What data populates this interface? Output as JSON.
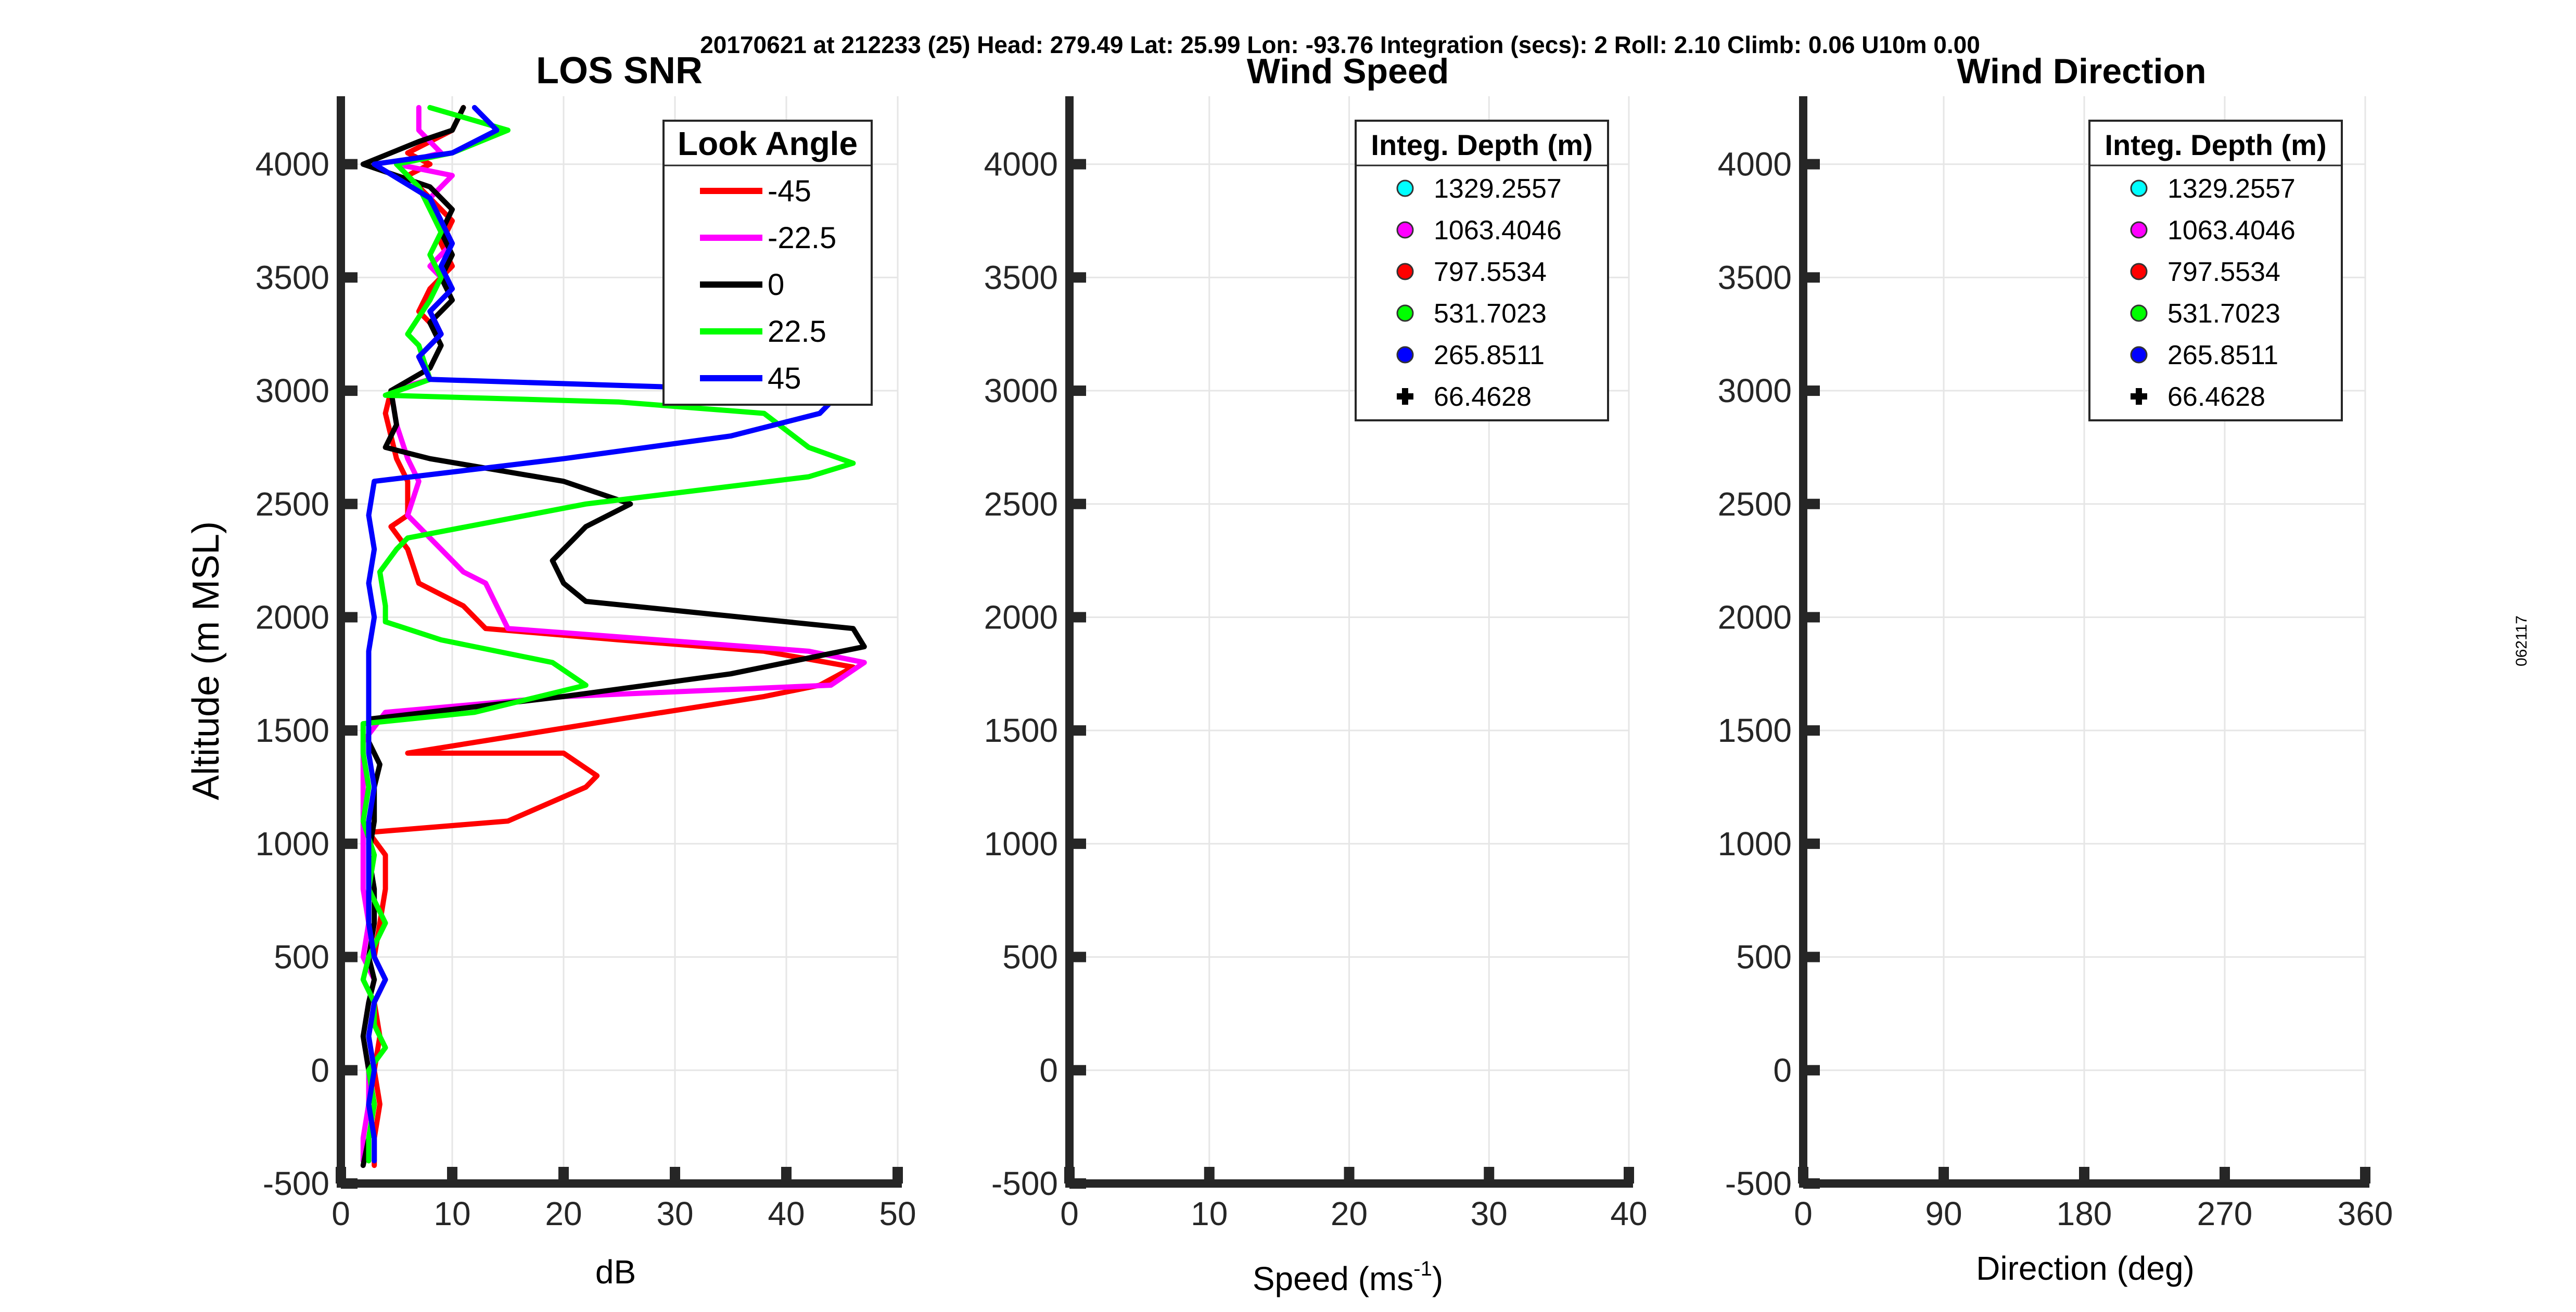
{
  "figure": {
    "header": "20170621 at 212233 (25)  Head: 279.49  Lat: 25.99  Lon: -93.76  Integration (secs): 2  Roll: 2.10  Climb: 0.06  U10m 0.00",
    "side_label": "062117",
    "colors": {
      "red": "#ff0000",
      "magenta": "#ff00ff",
      "black": "#000000",
      "green": "#00ff00",
      "blue": "#0000ff",
      "cyan": "#00ffff",
      "grid": "#e6e6e6",
      "axis": "#262626"
    }
  },
  "chart_data": [
    {
      "type": "line",
      "title": "LOS SNR",
      "xlabel": "dB",
      "ylabel": "Altitude (m MSL)",
      "xlim": [
        0,
        50
      ],
      "ylim": [
        -500,
        4300
      ],
      "xticks": [
        0,
        10,
        20,
        30,
        40,
        50
      ],
      "yticks": [
        -500,
        0,
        500,
        1000,
        1500,
        2000,
        2500,
        3000,
        3500,
        4000
      ],
      "grid": true,
      "legend": {
        "title": "Look Angle",
        "placement": "top-right",
        "entries": [
          "-45",
          "-22.5",
          "0",
          "22.5",
          "45"
        ]
      },
      "series": [
        {
          "name": "-45",
          "color": "#ff0000",
          "points": [
            [
              3,
              -420
            ],
            [
              3,
              -300
            ],
            [
              3.5,
              -150
            ],
            [
              3,
              0
            ],
            [
              3.5,
              150
            ],
            [
              3,
              300
            ],
            [
              4,
              400
            ],
            [
              3,
              500
            ],
            [
              3.5,
              650
            ],
            [
              4,
              800
            ],
            [
              4,
              950
            ],
            [
              2.5,
              1050
            ],
            [
              15,
              1100
            ],
            [
              22,
              1250
            ],
            [
              23,
              1300
            ],
            [
              20,
              1400
            ],
            [
              6,
              1400
            ],
            [
              25,
              1550
            ],
            [
              38,
              1650
            ],
            [
              43,
              1700
            ],
            [
              46,
              1780
            ],
            [
              38,
              1850
            ],
            [
              25,
              1900
            ],
            [
              13,
              1950
            ],
            [
              11,
              2050
            ],
            [
              7,
              2150
            ],
            [
              6,
              2300
            ],
            [
              4.5,
              2400
            ],
            [
              6,
              2450
            ],
            [
              6,
              2600
            ],
            [
              5,
              2700
            ],
            [
              4,
              2900
            ],
            [
              4.5,
              3000
            ],
            [
              8,
              3050
            ],
            [
              7,
              3150
            ],
            [
              9,
              3250
            ],
            [
              7,
              3350
            ],
            [
              8,
              3450
            ],
            [
              10,
              3550
            ],
            [
              9,
              3650
            ],
            [
              10,
              3750
            ],
            [
              8,
              3850
            ],
            [
              6,
              3950
            ],
            [
              8,
              4000
            ],
            [
              6,
              4050
            ],
            [
              10,
              4150
            ],
            [
              11,
              4250
            ]
          ]
        },
        {
          "name": "-22.5",
          "color": "#ff00ff",
          "points": [
            [
              2,
              -400
            ],
            [
              2,
              -300
            ],
            [
              2.5,
              -150
            ],
            [
              2.5,
              0
            ],
            [
              2,
              150
            ],
            [
              2.5,
              300
            ],
            [
              3,
              400
            ],
            [
              2,
              500
            ],
            [
              2.5,
              650
            ],
            [
              2,
              800
            ],
            [
              2,
              950
            ],
            [
              2,
              1050
            ],
            [
              2,
              1150
            ],
            [
              2,
              1300
            ],
            [
              2,
              1450
            ],
            [
              4,
              1580
            ],
            [
              20,
              1650
            ],
            [
              44,
              1700
            ],
            [
              47,
              1800
            ],
            [
              42,
              1850
            ],
            [
              15,
              1950
            ],
            [
              14,
              2050
            ],
            [
              13,
              2150
            ],
            [
              11,
              2200
            ],
            [
              9,
              2300
            ],
            [
              6,
              2450
            ],
            [
              7,
              2600
            ],
            [
              6,
              2700
            ],
            [
              5,
              2850
            ],
            [
              4.5,
              3000
            ],
            [
              8,
              3050
            ],
            [
              7,
              3150
            ],
            [
              9,
              3250
            ],
            [
              8,
              3350
            ],
            [
              10,
              3450
            ],
            [
              8,
              3550
            ],
            [
              10,
              3650
            ],
            [
              9,
              3750
            ],
            [
              8,
              3850
            ],
            [
              10,
              3950
            ],
            [
              5,
              4000
            ],
            [
              9,
              4050
            ],
            [
              7,
              4150
            ],
            [
              7,
              4250
            ]
          ]
        },
        {
          "name": "0",
          "color": "#000000",
          "points": [
            [
              2,
              -420
            ],
            [
              2.5,
              -300
            ],
            [
              3,
              -150
            ],
            [
              2.5,
              0
            ],
            [
              2,
              150
            ],
            [
              2.5,
              300
            ],
            [
              3,
              400
            ],
            [
              2.5,
              500
            ],
            [
              3,
              650
            ],
            [
              3,
              800
            ],
            [
              2.5,
              950
            ],
            [
              3,
              1100
            ],
            [
              3,
              1250
            ],
            [
              3.5,
              1350
            ],
            [
              2.5,
              1450
            ],
            [
              2.5,
              1550
            ],
            [
              20,
              1650
            ],
            [
              35,
              1750
            ],
            [
              47,
              1870
            ],
            [
              46,
              1950
            ],
            [
              22,
              2070
            ],
            [
              20,
              2150
            ],
            [
              19,
              2250
            ],
            [
              21,
              2350
            ],
            [
              22,
              2400
            ],
            [
              26,
              2500
            ],
            [
              20,
              2600
            ],
            [
              8,
              2700
            ],
            [
              4,
              2750
            ],
            [
              5,
              2850
            ],
            [
              4.5,
              3000
            ],
            [
              8,
              3100
            ],
            [
              9,
              3200
            ],
            [
              8,
              3300
            ],
            [
              10,
              3400
            ],
            [
              9,
              3500
            ],
            [
              10,
              3600
            ],
            [
              9,
              3700
            ],
            [
              10,
              3800
            ],
            [
              8,
              3900
            ],
            [
              2,
              4000
            ],
            [
              7,
              4100
            ],
            [
              10,
              4150
            ],
            [
              11,
              4250
            ]
          ]
        },
        {
          "name": "22.5",
          "color": "#00ff00",
          "points": [
            [
              2.5,
              -400
            ],
            [
              2.5,
              -300
            ],
            [
              3,
              -150
            ],
            [
              2.5,
              0
            ],
            [
              4,
              100
            ],
            [
              3,
              200
            ],
            [
              3,
              300
            ],
            [
              2,
              400
            ],
            [
              2.5,
              500
            ],
            [
              4,
              650
            ],
            [
              2.5,
              800
            ],
            [
              3,
              950
            ],
            [
              2,
              1100
            ],
            [
              2.5,
              1250
            ],
            [
              2,
              1400
            ],
            [
              2,
              1530
            ],
            [
              12,
              1580
            ],
            [
              22,
              1700
            ],
            [
              19,
              1800
            ],
            [
              9,
              1900
            ],
            [
              4,
              1980
            ],
            [
              4,
              2050
            ],
            [
              3.5,
              2200
            ],
            [
              5,
              2300
            ],
            [
              6,
              2350
            ],
            [
              22,
              2500
            ],
            [
              42,
              2620
            ],
            [
              46,
              2680
            ],
            [
              42,
              2750
            ],
            [
              38,
              2900
            ],
            [
              25,
              2950
            ],
            [
              4,
              2980
            ],
            [
              8,
              3050
            ],
            [
              7,
              3200
            ],
            [
              6,
              3250
            ],
            [
              8,
              3400
            ],
            [
              9,
              3500
            ],
            [
              8,
              3600
            ],
            [
              9,
              3700
            ],
            [
              8,
              3800
            ],
            [
              7,
              3900
            ],
            [
              5,
              4000
            ],
            [
              10,
              4050
            ],
            [
              15,
              4150
            ],
            [
              8,
              4250
            ]
          ]
        },
        {
          "name": "45",
          "color": "#0000ff",
          "points": [
            [
              3,
              -400
            ],
            [
              3,
              -300
            ],
            [
              2.5,
              -150
            ],
            [
              3,
              0
            ],
            [
              2.5,
              150
            ],
            [
              3,
              300
            ],
            [
              4,
              400
            ],
            [
              3,
              500
            ],
            [
              2.5,
              650
            ],
            [
              2.5,
              800
            ],
            [
              2.5,
              950
            ],
            [
              2.5,
              1100
            ],
            [
              3,
              1250
            ],
            [
              2.5,
              1400
            ],
            [
              2.5,
              1550
            ],
            [
              2.5,
              1700
            ],
            [
              2.5,
              1850
            ],
            [
              3,
              2000
            ],
            [
              2.5,
              2150
            ],
            [
              3,
              2300
            ],
            [
              2.5,
              2450
            ],
            [
              3,
              2600
            ],
            [
              20,
              2700
            ],
            [
              35,
              2800
            ],
            [
              43,
              2900
            ],
            [
              44,
              2950
            ],
            [
              40,
              3000
            ],
            [
              8,
              3050
            ],
            [
              7,
              3150
            ],
            [
              9,
              3250
            ],
            [
              8,
              3350
            ],
            [
              10,
              3450
            ],
            [
              9,
              3550
            ],
            [
              10,
              3650
            ],
            [
              9,
              3750
            ],
            [
              8,
              3850
            ],
            [
              3,
              4000
            ],
            [
              10,
              4050
            ],
            [
              14,
              4150
            ],
            [
              12,
              4250
            ]
          ]
        }
      ]
    },
    {
      "type": "scatter",
      "title": "Wind Speed",
      "xlabel": "Speed (ms",
      "xlabel_sup": "-1",
      "xlabel_end": ")",
      "xlim": [
        0,
        40
      ],
      "ylim": [
        -500,
        4300
      ],
      "xticks": [
        0,
        10,
        20,
        30,
        40
      ],
      "yticks": [
        -500,
        0,
        500,
        1000,
        1500,
        2000,
        2500,
        3000,
        3500,
        4000
      ],
      "grid": true,
      "legend": {
        "title": "Integ. Depth (m)",
        "placement": "top-right",
        "entries": [
          {
            "label": "1329.2557",
            "color": "#00ffff",
            "marker": "circle"
          },
          {
            "label": "1063.4046",
            "color": "#ff00ff",
            "marker": "circle"
          },
          {
            "label": "797.5534",
            "color": "#ff0000",
            "marker": "circle"
          },
          {
            "label": "531.7023",
            "color": "#00ff00",
            "marker": "circle"
          },
          {
            "label": "265.8511",
            "color": "#0000ff",
            "marker": "circle"
          },
          {
            "label": "66.4628",
            "color": "#000000",
            "marker": "plus"
          }
        ]
      },
      "series": []
    },
    {
      "type": "scatter",
      "title": "Wind Direction",
      "xlabel": "Direction (deg)",
      "xlim": [
        0,
        360
      ],
      "ylim": [
        -500,
        4300
      ],
      "xticks": [
        0,
        90,
        180,
        270,
        360
      ],
      "yticks": [
        -500,
        0,
        500,
        1000,
        1500,
        2000,
        2500,
        3000,
        3500,
        4000
      ],
      "grid": true,
      "legend": {
        "title": "Integ. Depth (m)",
        "placement": "top-right",
        "entries": [
          {
            "label": "1329.2557",
            "color": "#00ffff",
            "marker": "circle"
          },
          {
            "label": "1063.4046",
            "color": "#ff00ff",
            "marker": "circle"
          },
          {
            "label": "797.5534",
            "color": "#ff0000",
            "marker": "circle"
          },
          {
            "label": "531.7023",
            "color": "#00ff00",
            "marker": "circle"
          },
          {
            "label": "265.8511",
            "color": "#0000ff",
            "marker": "circle"
          },
          {
            "label": "66.4628",
            "color": "#000000",
            "marker": "plus"
          }
        ]
      },
      "series": []
    }
  ]
}
